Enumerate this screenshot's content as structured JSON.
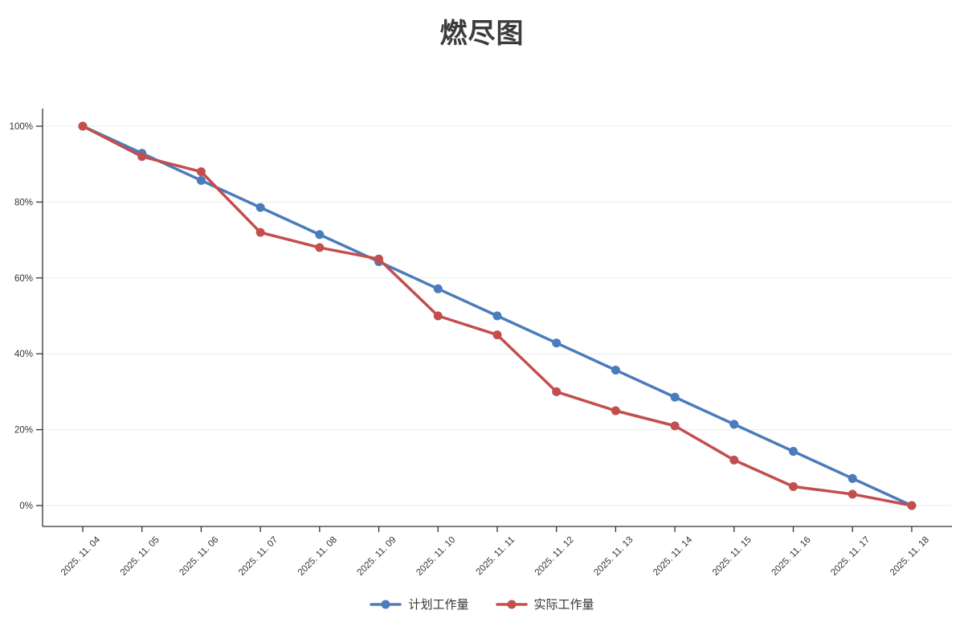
{
  "title": "燃尽图",
  "chart_data": {
    "type": "line",
    "title": "燃尽图",
    "xlabel": "",
    "ylabel": "",
    "x": [
      "2025. 11. 04",
      "2025. 11. 05",
      "2025. 11. 06",
      "2025. 11. 07",
      "2025. 11. 08",
      "2025. 11. 09",
      "2025. 11. 10",
      "2025. 11. 11",
      "2025. 11. 12",
      "2025. 11. 13",
      "2025. 11. 14",
      "2025. 11. 15",
      "2025. 11. 16",
      "2025. 11. 17",
      "2025. 11. 18"
    ],
    "series": [
      {
        "name": "计划工作量",
        "color": "#4a7cbc",
        "values": [
          100,
          92.86,
          85.71,
          78.57,
          71.43,
          64.29,
          57.14,
          50,
          42.86,
          35.71,
          28.57,
          21.43,
          14.29,
          7.14,
          0
        ]
      },
      {
        "name": "实际工作量",
        "color": "#c24f4d",
        "values": [
          100,
          92,
          88,
          72,
          68,
          65,
          50,
          45,
          30,
          25,
          21,
          12,
          5,
          3,
          0
        ]
      }
    ],
    "ylim": [
      0,
      100
    ],
    "yticks": [
      0,
      20,
      40,
      60,
      80,
      100
    ],
    "ytick_suffix": "%",
    "grid": true,
    "legend_position": "bottom",
    "axis_color": "#333333",
    "grid_color": "#ececec",
    "tick_label_color": "#333333",
    "title_color": "#3c3c3c"
  }
}
